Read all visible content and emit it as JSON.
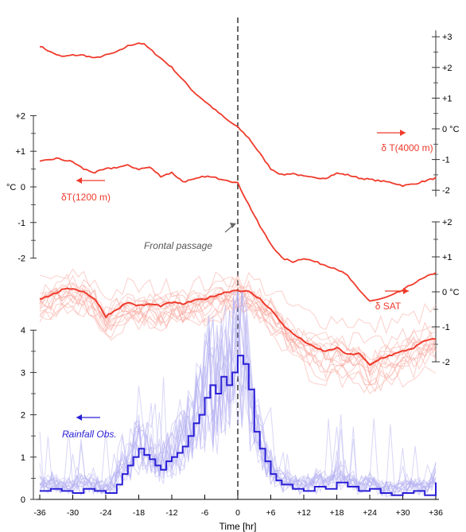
{
  "colors": {
    "temperature": "#ef3b2c",
    "temperature_faint": "#f7a9a0",
    "rainfall": "#2a1fd6",
    "rainfall_faint": "#b3b0f2",
    "axis": "#000000",
    "annotation": "#666666"
  },
  "chart_data": {
    "type": "line",
    "x_axis": {
      "label": "Time [hr]",
      "range": [
        -36,
        36
      ],
      "ticks": [
        -36,
        -30,
        -24,
        -18,
        -12,
        -6,
        0,
        6,
        12,
        18,
        24,
        30,
        36
      ],
      "tick_labels": [
        "-36",
        "-30",
        "-24",
        "-18",
        "-12",
        "-6",
        "0",
        "+6",
        "+12",
        "+18",
        "+24",
        "+30",
        "+36"
      ]
    },
    "annotations": {
      "frontal_passage": "Frontal passage",
      "frontal_time": 0
    },
    "panels": [
      {
        "id": "t4000",
        "label": "δ T(4000 m)",
        "arrow": "right",
        "axis_side": "right",
        "units": "°C",
        "ticks": [
          3,
          2,
          1,
          0,
          -1,
          -2
        ],
        "tick_labels": [
          "+3",
          "+2",
          "+1",
          "0 °C",
          "-1",
          "-2"
        ],
        "series": [
          {
            "x": [
              -36,
              -34,
              -32,
              -30,
              -28,
              -26,
              -24,
              -22,
              -20,
              -18,
              -17,
              -16,
              -14,
              -12,
              -10,
              -8,
              -6,
              -4,
              -2,
              0,
              2,
              4,
              6,
              8,
              10,
              12,
              14,
              16,
              18,
              20,
              22,
              24,
              26,
              28,
              30,
              32,
              34,
              36
            ],
            "y": [
              2.7,
              2.5,
              2.35,
              2.4,
              2.4,
              2.3,
              2.4,
              2.5,
              2.7,
              2.8,
              2.75,
              2.6,
              2.3,
              2.0,
              1.6,
              1.2,
              0.9,
              0.6,
              0.3,
              0.05,
              -0.3,
              -0.8,
              -1.3,
              -1.5,
              -1.45,
              -1.55,
              -1.6,
              -1.6,
              -1.45,
              -1.5,
              -1.6,
              -1.65,
              -1.7,
              -1.75,
              -1.85,
              -1.8,
              -1.7,
              -1.6
            ]
          }
        ]
      },
      {
        "id": "t1200",
        "label": "δT(1200 m)",
        "arrow": "left",
        "axis_side": "left",
        "axis_label": "°C",
        "ticks": [
          2,
          1,
          0,
          -1,
          -2
        ],
        "tick_labels": [
          "+2",
          "+1",
          "0",
          "-1",
          "-2"
        ],
        "series": [
          {
            "x": [
              -36,
              -33,
              -30,
              -28,
              -26,
              -24,
              -22,
              -20,
              -18,
              -16,
              -14,
              -12,
              -10,
              -8,
              -6,
              -4,
              -2,
              0,
              1,
              2,
              4,
              6,
              8,
              10,
              12,
              14,
              16,
              18,
              20,
              22,
              24,
              26,
              28,
              30,
              32,
              34,
              36
            ],
            "y": [
              0.7,
              0.8,
              0.7,
              0.5,
              0.4,
              0.5,
              0.55,
              0.6,
              0.5,
              0.55,
              0.3,
              0.4,
              0.15,
              0.2,
              0.3,
              0.25,
              0.2,
              0.1,
              -0.2,
              -0.5,
              -1.1,
              -1.6,
              -2.0,
              -2.1,
              -2.0,
              -2.1,
              -2.2,
              -2.3,
              -2.5,
              -2.9,
              -3.2,
              -3.15,
              -3.05,
              -2.9,
              -2.7,
              -2.55,
              -2.4
            ]
          }
        ]
      },
      {
        "id": "sat",
        "label": "δ SAT",
        "arrow": "right",
        "axis_side": "right",
        "ticks": [
          2,
          1,
          0,
          -1,
          -2
        ],
        "tick_labels": [
          "+2",
          "+1",
          "0   °C",
          "-1",
          "-2"
        ],
        "mean": {
          "x": [
            -36,
            -34,
            -32,
            -30,
            -28,
            -26,
            -24,
            -22,
            -20,
            -18,
            -16,
            -14,
            -12,
            -10,
            -8,
            -6,
            -4,
            -2,
            0,
            2,
            4,
            6,
            8,
            10,
            12,
            14,
            16,
            18,
            20,
            22,
            24,
            26,
            28,
            30,
            32,
            34,
            36
          ],
          "y": [
            -0.2,
            -0.1,
            0.05,
            0.1,
            0.0,
            -0.2,
            -0.7,
            -0.5,
            -0.3,
            -0.4,
            -0.35,
            -0.4,
            -0.3,
            -0.35,
            -0.25,
            -0.2,
            -0.1,
            0.0,
            0.05,
            0.0,
            -0.2,
            -0.5,
            -0.9,
            -1.2,
            -1.4,
            -1.6,
            -1.7,
            -1.6,
            -1.8,
            -1.75,
            -2.1,
            -1.9,
            -1.8,
            -1.7,
            -1.6,
            -1.4,
            -1.35
          ]
        },
        "members": 16
      },
      {
        "id": "rain",
        "label": "Rainfall Obs.",
        "arrow": "left",
        "axis_side": "left",
        "ticks": [
          0,
          1,
          2,
          3,
          4
        ],
        "tick_labels": [
          "0",
          "1",
          "2",
          "3",
          "4"
        ],
        "step": {
          "x": [
            -36,
            -34,
            -32,
            -30,
            -28,
            -26,
            -24,
            -22,
            -21,
            -20,
            -19,
            -18,
            -17,
            -16,
            -15,
            -14,
            -13,
            -12,
            -11,
            -10,
            -9,
            -8,
            -7,
            -6,
            -5,
            -4,
            -3,
            -2,
            -1,
            0,
            1,
            2,
            3,
            4,
            5,
            6,
            7,
            8,
            10,
            12,
            14,
            16,
            18,
            20,
            22,
            24,
            26,
            28,
            30,
            32,
            34,
            36
          ],
          "y": [
            0.2,
            0.25,
            0.2,
            0.15,
            0.25,
            0.2,
            0.15,
            0.35,
            0.6,
            0.8,
            1.0,
            1.2,
            1.05,
            0.95,
            0.8,
            0.7,
            0.9,
            1.0,
            1.1,
            1.25,
            1.5,
            1.8,
            2.0,
            2.4,
            2.7,
            2.5,
            2.9,
            2.7,
            3.0,
            3.4,
            3.2,
            2.6,
            1.6,
            1.2,
            0.9,
            0.6,
            0.45,
            0.35,
            0.25,
            0.2,
            0.3,
            0.25,
            0.4,
            0.3,
            0.2,
            0.25,
            0.15,
            0.1,
            0.15,
            0.2,
            0.1,
            0.4
          ]
        },
        "members": 16
      }
    ]
  }
}
